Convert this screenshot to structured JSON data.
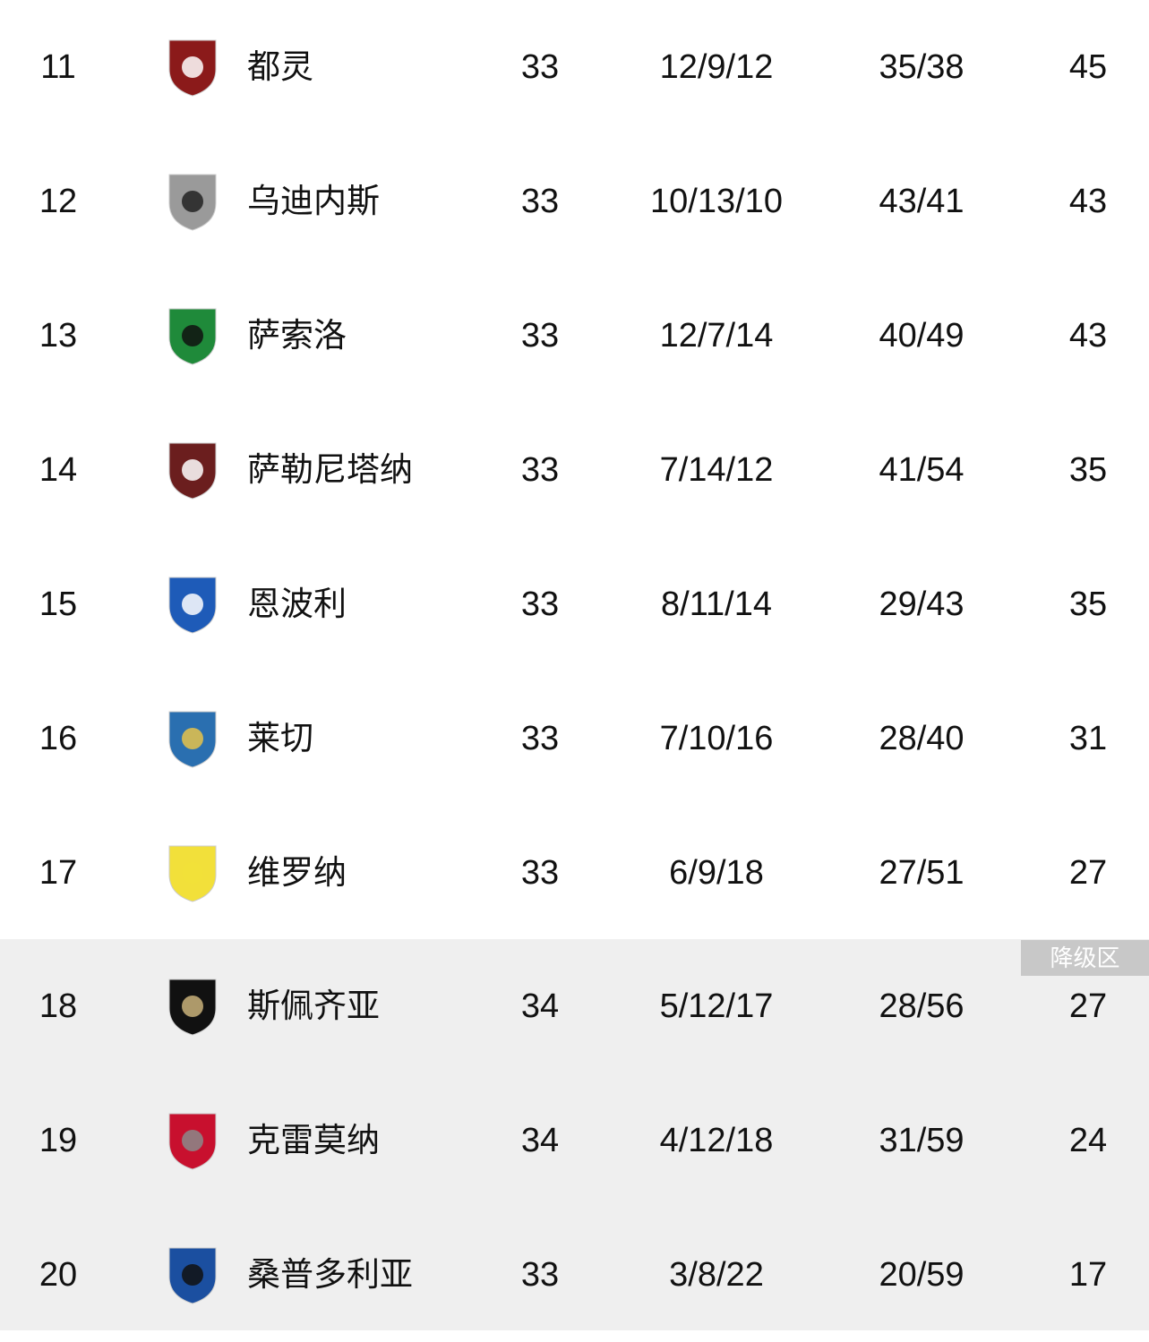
{
  "relegation_label": "降级区",
  "colors": {
    "relegation_bg": "#efefef",
    "badge_bg": "#c8c8c8"
  },
  "rows": [
    {
      "rank": "11",
      "team": "都灵",
      "played": "33",
      "wdl": "12/9/12",
      "goals": "35/38",
      "points": "45",
      "logo": "torino-crest",
      "c1": "#8b1a1a",
      "c2": "#ffffff"
    },
    {
      "rank": "12",
      "team": "乌迪内斯",
      "played": "33",
      "wdl": "10/13/10",
      "goals": "43/41",
      "points": "43",
      "logo": "udinese-crest",
      "c1": "#9a9a9a",
      "c2": "#222222"
    },
    {
      "rank": "13",
      "team": "萨索洛",
      "played": "33",
      "wdl": "12/7/14",
      "goals": "40/49",
      "points": "43",
      "logo": "sassuolo-crest",
      "c1": "#1f8a3a",
      "c2": "#111111"
    },
    {
      "rank": "14",
      "team": "萨勒尼塔纳",
      "played": "33",
      "wdl": "7/14/12",
      "goals": "41/54",
      "points": "35",
      "logo": "salernitana-crest",
      "c1": "#6b1e1e",
      "c2": "#ffffff"
    },
    {
      "rank": "15",
      "team": "恩波利",
      "played": "33",
      "wdl": "8/11/14",
      "goals": "29/43",
      "points": "35",
      "logo": "empoli-crest",
      "c1": "#1e5bb8",
      "c2": "#ffffff"
    },
    {
      "rank": "16",
      "team": "莱切",
      "played": "33",
      "wdl": "7/10/16",
      "goals": "28/40",
      "points": "31",
      "logo": "lecce-crest",
      "c1": "#2a6fb0",
      "c2": "#e6c34a"
    },
    {
      "rank": "17",
      "team": "维罗纳",
      "played": "33",
      "wdl": "6/9/18",
      "goals": "27/51",
      "points": "27",
      "logo": "verona-crest",
      "c1": "#f2e03a",
      "c2": "#f2e03a"
    },
    {
      "rank": "18",
      "team": "斯佩齐亚",
      "played": "34",
      "wdl": "5/12/17",
      "goals": "28/56",
      "points": "27",
      "logo": "spezia-crest",
      "c1": "#111111",
      "c2": "#c9b27a"
    },
    {
      "rank": "19",
      "team": "克雷莫纳",
      "played": "34",
      "wdl": "4/12/18",
      "goals": "31/59",
      "points": "24",
      "logo": "cremonese-crest",
      "c1": "#c8102e",
      "c2": "#8a8a8a"
    },
    {
      "rank": "20",
      "team": "桑普多利亚",
      "played": "33",
      "wdl": "3/8/22",
      "goals": "20/59",
      "points": "17",
      "logo": "sampdoria-crest",
      "c1": "#1b4fa0",
      "c2": "#111111"
    }
  ]
}
